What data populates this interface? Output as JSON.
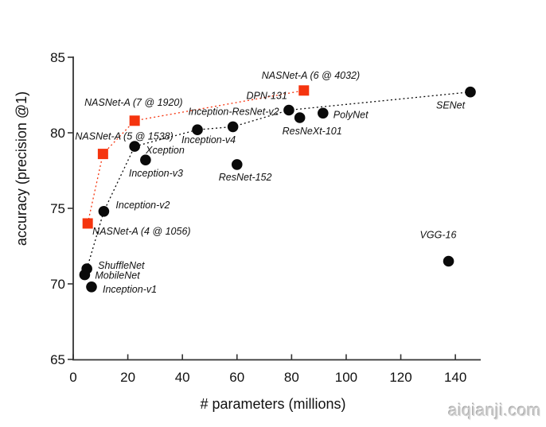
{
  "figure": {
    "watermark": "aiqianji.com"
  },
  "chart_data": {
    "type": "scatter",
    "title": "",
    "xlabel": "# parameters (millions)",
    "ylabel": "accuracy (precision @1)",
    "xlim": [
      0,
      149
    ],
    "ylim": [
      65,
      85
    ],
    "x_ticks": [
      0,
      20,
      40,
      60,
      80,
      100,
      120,
      140
    ],
    "y_ticks": [
      65,
      70,
      75,
      80,
      85
    ],
    "grid": false,
    "legend_position": "none (each point labeled inline)",
    "series": [
      {
        "name": "published-models",
        "marker": "circle",
        "color": "#0a0a0a",
        "points": [
          {
            "label": "MobileNet",
            "x": 4.2,
            "y": 70.6,
            "anchor": "start",
            "dx": 13,
            "dy": 5
          },
          {
            "label": "ShuffleNet",
            "x": 5.0,
            "y": 71.0,
            "anchor": "start",
            "dx": 14,
            "dy": 0
          },
          {
            "label": "Inception-v1",
            "x": 6.7,
            "y": 69.8,
            "anchor": "start",
            "dx": 14,
            "dy": 7
          },
          {
            "label": "Inception-v2",
            "x": 11.2,
            "y": 74.8,
            "anchor": "start",
            "dx": 15,
            "dy": -4
          },
          {
            "label": "Xception",
            "x": 22.5,
            "y": 79.1,
            "anchor": "start",
            "dx": 14,
            "dy": 9
          },
          {
            "label": "Inception-v3",
            "x": 26.5,
            "y": 78.2,
            "anchor": "start",
            "dx": -21,
            "dy": 21
          },
          {
            "label": "Inception-v4",
            "x": 45.5,
            "y": 80.2,
            "anchor": "start",
            "dx": -20,
            "dy": 17
          },
          {
            "label": "Inception-ResNet-v2",
            "x": 58.5,
            "y": 80.4,
            "anchor": "start",
            "dx": -56,
            "dy": -15
          },
          {
            "label": "ResNet-152",
            "x": 60.0,
            "y": 77.9,
            "anchor": "start",
            "dx": -23,
            "dy": 20
          },
          {
            "label": "DPN-131",
            "x": 79.0,
            "y": 81.5,
            "anchor": "end",
            "dx": -2,
            "dy": -14
          },
          {
            "label": "ResNeXt-101",
            "x": 83.0,
            "y": 81.0,
            "anchor": "start",
            "dx": -22,
            "dy": 21
          },
          {
            "label": "PolyNet",
            "x": 91.5,
            "y": 81.3,
            "anchor": "start",
            "dx": 13,
            "dy": 6
          },
          {
            "label": "VGG-16",
            "x": 137.5,
            "y": 71.5,
            "anchor": "start",
            "dx": -36,
            "dy": -29
          },
          {
            "label": "SENet",
            "x": 145.5,
            "y": 82.7,
            "anchor": "start",
            "dx": -43,
            "dy": 21
          }
        ]
      },
      {
        "name": "NASNet-A",
        "marker": "square",
        "color": "#f5340e",
        "points": [
          {
            "label": "NASNet-A (4 @ 1056)",
            "x": 5.3,
            "y": 74.0,
            "anchor": "start",
            "dx": 6,
            "dy": 14
          },
          {
            "label": "NASNet-A (5 @ 1538)",
            "x": 10.9,
            "y": 78.6,
            "anchor": "start",
            "dx": -35,
            "dy": -18
          },
          {
            "label": "NASNet-A (7 @ 1920)",
            "x": 22.5,
            "y": 80.8,
            "anchor": "start",
            "dx": -63,
            "dy": -19
          },
          {
            "label": "NASNet-A (6 @ 4032)",
            "x": 84.5,
            "y": 82.8,
            "anchor": "start",
            "dx": -53,
            "dy": -15
          }
        ]
      }
    ],
    "lines": [
      {
        "name": "sota-frontier",
        "color": "#0a0a0a",
        "style": "dotted",
        "through": [
          "ShuffleNet",
          "Inception-v2",
          "Xception",
          "Inception-v4",
          "Inception-ResNet-v2",
          "DPN-131",
          "SENet"
        ]
      },
      {
        "name": "nasnet-frontier",
        "color": "#f5340e",
        "style": "dotted",
        "through": [
          "NASNet-A (4 @ 1056)",
          "NASNet-A (5 @ 1538)",
          "NASNet-A (7 @ 1920)",
          "NASNet-A (6 @ 4032)"
        ]
      }
    ]
  }
}
